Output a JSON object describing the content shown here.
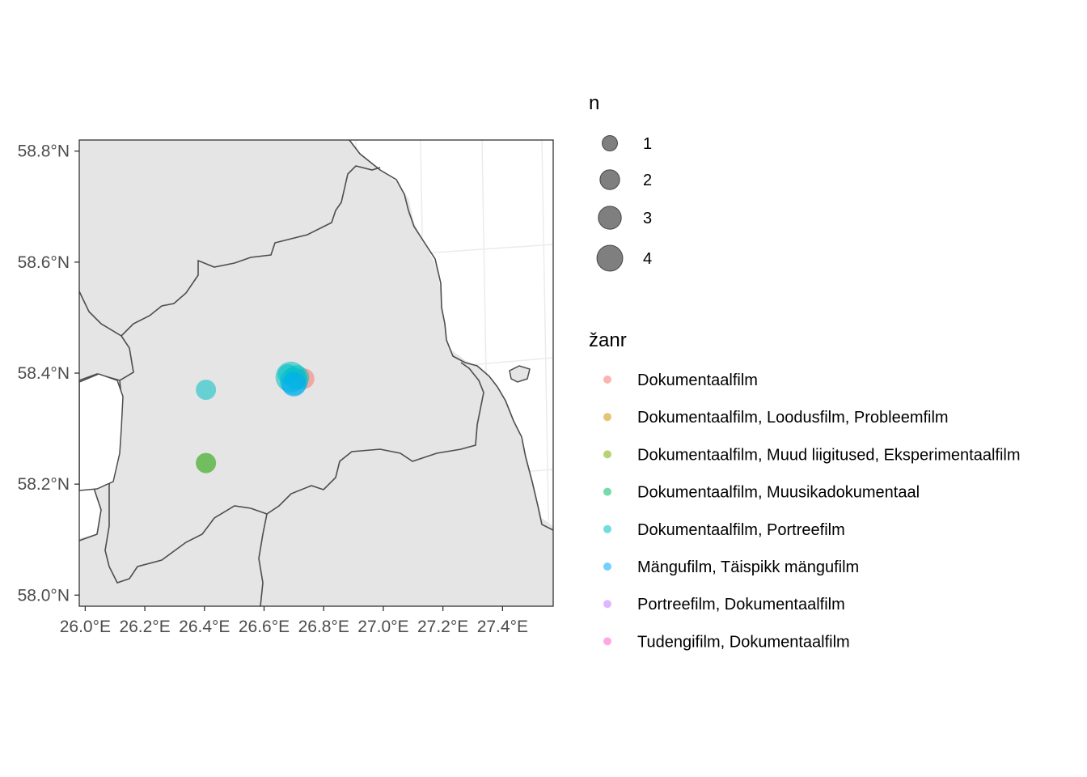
{
  "map": {
    "x_ticks": [
      "26.0°E",
      "26.2°E",
      "26.4°E",
      "26.6°E",
      "26.8°E",
      "27.0°E",
      "27.2°E",
      "27.4°E"
    ],
    "y_ticks": [
      "58.0°N",
      "58.2°N",
      "58.4°N",
      "58.6°N",
      "58.8°N"
    ],
    "xlim": [
      25.98,
      27.57
    ],
    "ylim": [
      57.98,
      58.82
    ],
    "land_color": "#e5e5e5",
    "border_color": "#4d4d4d"
  },
  "chart_data": {
    "type": "scatter",
    "x_ticks": [
      26.0,
      26.2,
      26.4,
      26.6,
      26.8,
      27.0,
      27.2,
      27.4
    ],
    "y_ticks": [
      58.0,
      58.2,
      58.4,
      58.6,
      58.8
    ],
    "points": [
      {
        "lon": 26.735,
        "lat": 58.39,
        "n": 1,
        "genre": "Dokumentaalfilm"
      },
      {
        "lon": 26.69,
        "lat": 58.393,
        "n": 4,
        "genre": "Dokumentaalfilm, Portreefilm"
      },
      {
        "lon": 26.7,
        "lat": 58.385,
        "n": 3,
        "genre": "Dokumentaalfilm, Portreefilm"
      },
      {
        "lon": 26.71,
        "lat": 58.392,
        "n": 2,
        "genre": "Dokumentaalfilm, Portreefilm"
      },
      {
        "lon": 26.68,
        "lat": 58.398,
        "n": 1,
        "genre": "Dokumentaalfilm, Portreefilm"
      },
      {
        "lon": 26.7,
        "lat": 58.38,
        "n": 2,
        "genre": "Mängufilm, Täispikk mängufilm"
      },
      {
        "lon": 26.405,
        "lat": 58.37,
        "n": 1,
        "genre": "Dokumentaalfilm, Portreefilm"
      },
      {
        "lon": 26.405,
        "lat": 58.238,
        "n": 1,
        "genre": "Dokumentaalfilm, Portreefilm"
      },
      {
        "lon": 26.405,
        "lat": 58.238,
        "n": 1,
        "genre": "Dokumentaalfilm, Muud liigitused, Eksperimentaalfilm"
      }
    ]
  },
  "legend_size": {
    "title": "n",
    "items": [
      {
        "label": "1",
        "value": 1
      },
      {
        "label": "2",
        "value": 2
      },
      {
        "label": "3",
        "value": 3
      },
      {
        "label": "4",
        "value": 4
      }
    ]
  },
  "legend_color": {
    "title": "žanr",
    "items": [
      {
        "label": "Dokumentaalfilm",
        "color": "#F8766D"
      },
      {
        "label": "Dokumentaalfilm, Loodusfilm, Probleemfilm",
        "color": "#CD9600"
      },
      {
        "label": "Dokumentaalfilm, Muud liigitused, Eksperimentaalfilm",
        "color": "#7CAE00"
      },
      {
        "label": "Dokumentaalfilm, Muusikadokumentaal",
        "color": "#00BE67"
      },
      {
        "label": "Dokumentaalfilm, Portreefilm",
        "color": "#00BFC4"
      },
      {
        "label": "Mängufilm, Täispikk mängufilm",
        "color": "#00A9FF"
      },
      {
        "label": "Portreefilm, Dokumentaalfilm",
        "color": "#C77CFF"
      },
      {
        "label": "Tudengifilm, Dokumentaalfilm",
        "color": "#FF61CC"
      }
    ]
  }
}
